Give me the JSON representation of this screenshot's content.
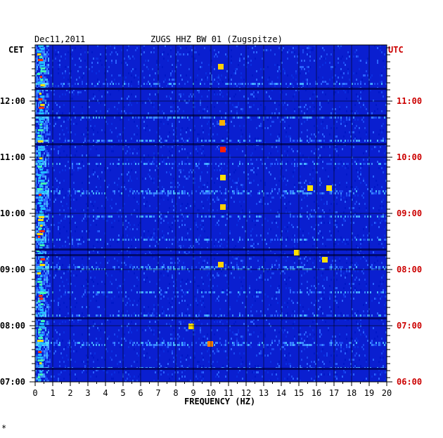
{
  "header": {
    "date": "Dec11,2011",
    "station": "ZUGS HHZ BW 01 (Zugspitze)",
    "left_tz": "CET",
    "right_tz": "UTC"
  },
  "chart_data": {
    "type": "heatmap",
    "title": "ZUGS HHZ BW 01 (Zugspitze)",
    "xlabel": "FREQUENCY (HZ)",
    "xlim": [
      0,
      20
    ],
    "x_ticks": [
      "0",
      "1",
      "2",
      "3",
      "4",
      "5",
      "6",
      "7",
      "8",
      "9",
      "10",
      "11",
      "12",
      "13",
      "14",
      "15",
      "16",
      "17",
      "18",
      "19",
      "20"
    ],
    "y_left_ticks": [
      "12:00",
      "11:00",
      "10:00",
      "09:00",
      "08:00",
      "07:00"
    ],
    "y_right_ticks": [
      "11:00",
      "10:00",
      "09:00",
      "08:00",
      "07:00",
      "06:00"
    ],
    "y_left_label": "CET",
    "y_right_label": "UTC",
    "grid": true,
    "colors": {
      "background": "#0a1fd0",
      "tick_right": "#cc0000",
      "axis": "#000000"
    }
  },
  "footer": {
    "mark": "*"
  }
}
